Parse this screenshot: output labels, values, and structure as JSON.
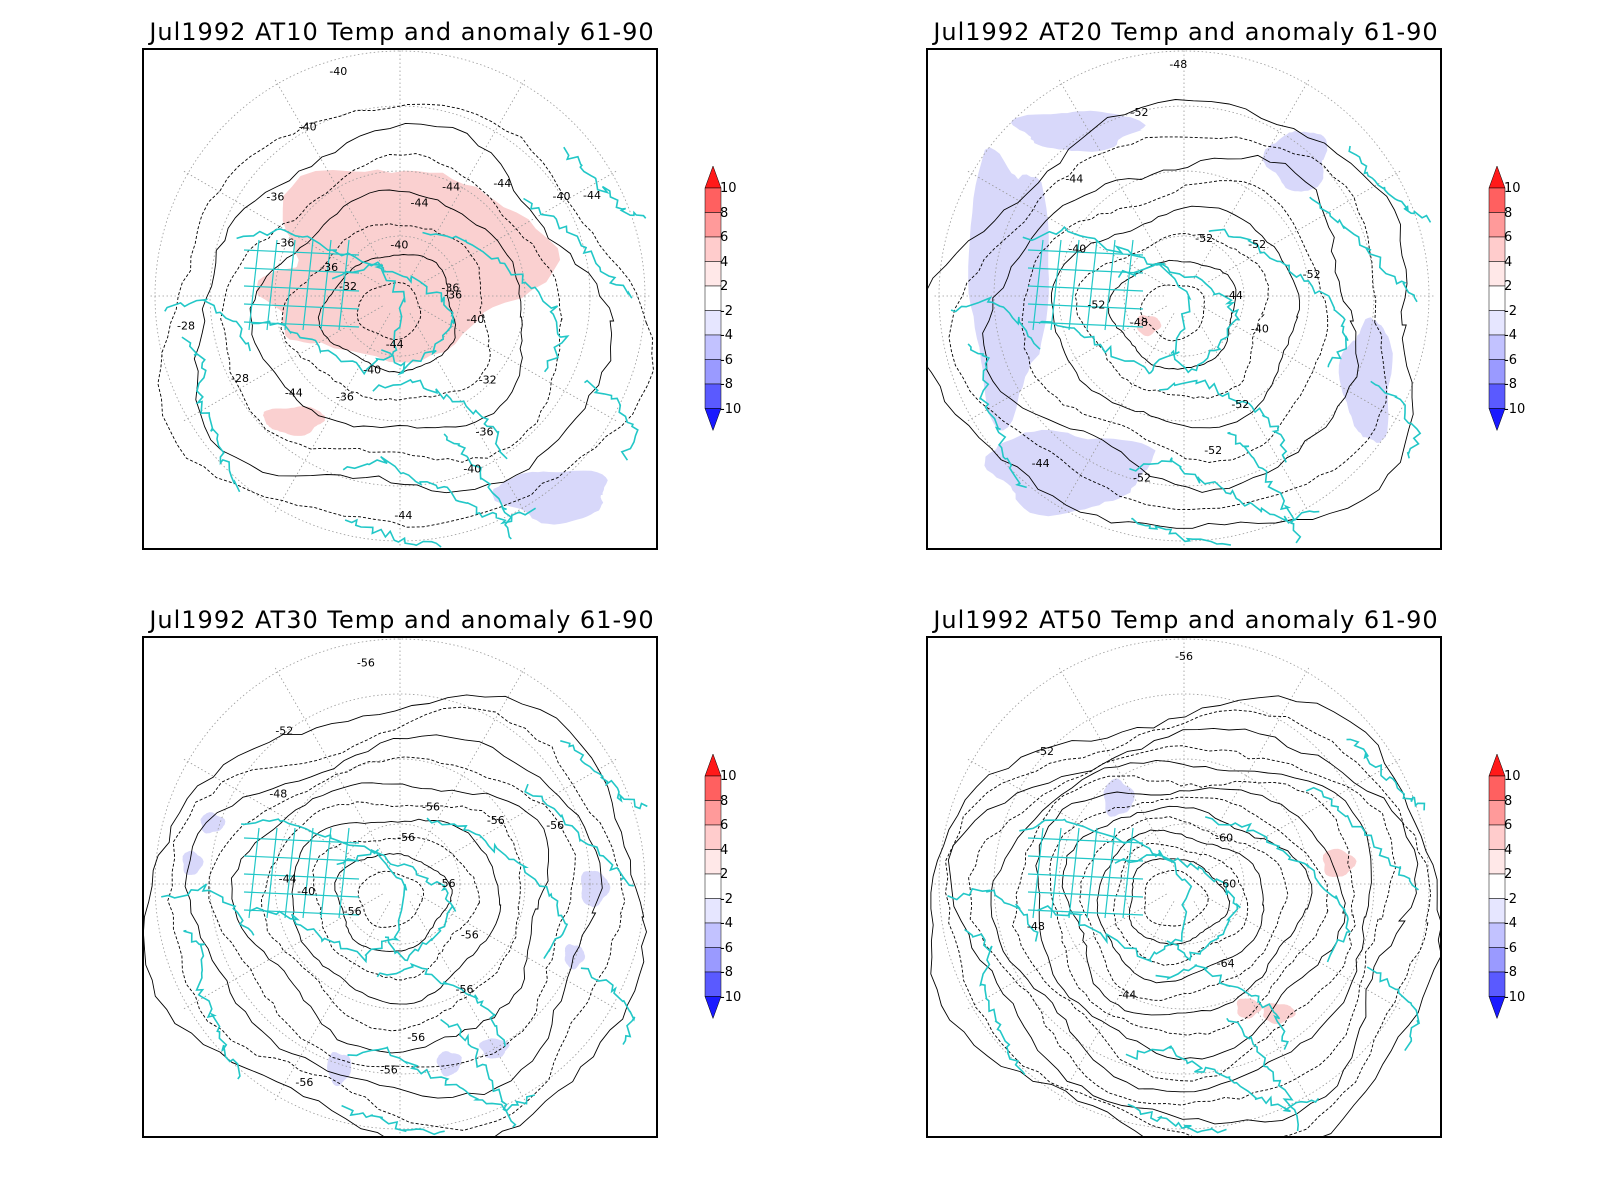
{
  "panels": [
    {
      "title": "Jul1992 AT10 Temp and anomaly 61-90",
      "contour_labels": [
        "-36",
        "-40",
        "-32",
        "-36",
        "-40",
        "-44",
        "-44",
        "-40",
        "-36",
        "-44",
        "-28",
        "-28",
        "-32",
        "-36",
        "-36",
        "-36",
        "-40",
        "-40",
        "-40",
        "-44",
        "-44",
        "-44",
        "-40",
        "-44",
        "-36"
      ],
      "anomalies": [
        {
          "sign": "positive",
          "magnitude": "2 to 4"
        },
        {
          "sign": "negative",
          "magnitude": "-2 to -4"
        }
      ]
    },
    {
      "title": "Jul1992 AT20 Temp and anomaly 61-90",
      "contour_labels": [
        "-44",
        "-40",
        "-52",
        "-52",
        "-52",
        "-44",
        "-48",
        "-52",
        "-40",
        "-44",
        "-52",
        "-48",
        "-52",
        "-52",
        "-52"
      ],
      "anomalies": [
        {
          "sign": "negative",
          "magnitude": "-2 to -4"
        },
        {
          "sign": "positive",
          "magnitude": "2 to 4"
        }
      ]
    },
    {
      "title": "Jul1992 AT30 Temp and anomaly 61-90",
      "contour_labels": [
        "-56",
        "-56",
        "-56",
        "-56",
        "-56",
        "-56",
        "-56",
        "-40",
        "-44",
        "-48",
        "-52",
        "-56",
        "-56",
        "-56",
        "-56",
        "-56"
      ],
      "anomalies": [
        {
          "sign": "negative",
          "magnitude": "-2 to -4"
        }
      ]
    },
    {
      "title": "Jul1992 AT50 Temp and anomaly 61-90",
      "contour_labels": [
        "-60",
        "-64",
        "-44",
        "-48",
        "-52",
        "-56",
        "-60"
      ],
      "anomalies": [
        {
          "sign": "negative",
          "magnitude": "-2 to -4"
        },
        {
          "sign": "positive",
          "magnitude": "2 to 4"
        }
      ]
    }
  ],
  "colorbar": {
    "labels": [
      "10",
      "8",
      "6",
      "4",
      "2",
      "-2",
      "-4",
      "-6",
      "-8",
      "-10"
    ],
    "colors": [
      "#ff1a1a",
      "#ff6060",
      "#ff9a9a",
      "#ffcccc",
      "#ffe8e8",
      "#ffffff",
      "#e6e6ff",
      "#c2c2ff",
      "#9a9aff",
      "#5a5aff",
      "#1a1aff"
    ]
  },
  "colors": {
    "coastline": "#22c7c7",
    "contour": "#000000",
    "anomaly_positive": "#fad0d0",
    "anomaly_negative": "#d8d8fa",
    "graticule": "#9a9a9a"
  }
}
